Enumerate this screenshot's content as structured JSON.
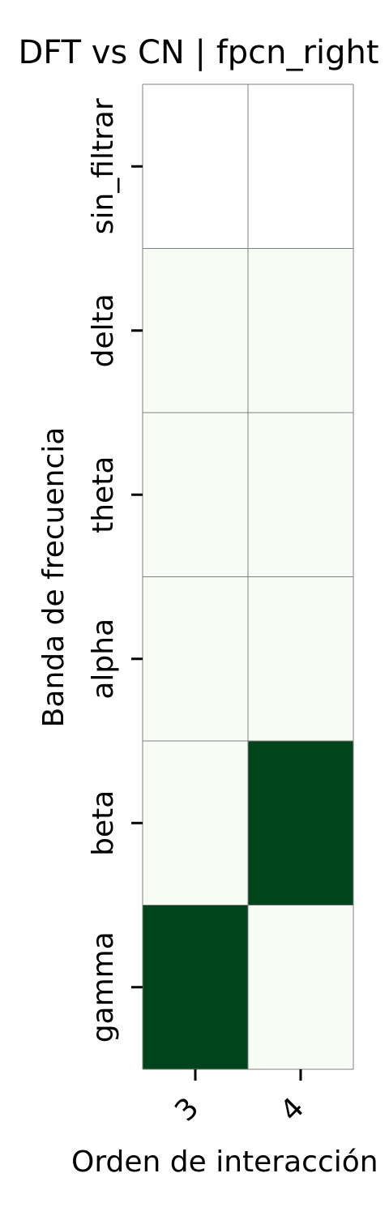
{
  "chart_data": {
    "type": "heatmap",
    "title": "DFT vs CN | fpcn_right",
    "xlabel": "Orden de interacción",
    "ylabel": "Banda de frecuencia",
    "x_categories": [
      "3",
      "4"
    ],
    "y_categories": [
      "sin_filtrar",
      "delta",
      "theta",
      "alpha",
      "beta",
      "gamma"
    ],
    "values": [
      [
        null,
        null
      ],
      [
        0,
        0
      ],
      [
        0,
        0
      ],
      [
        0,
        0
      ],
      [
        0,
        1
      ],
      [
        1,
        0
      ]
    ],
    "colormap": {
      "low": "#f7fcf5",
      "high": "#00441b",
      "missing": "#ffffff"
    },
    "grid": true,
    "grid_color": "#808080",
    "colorbar": false
  }
}
